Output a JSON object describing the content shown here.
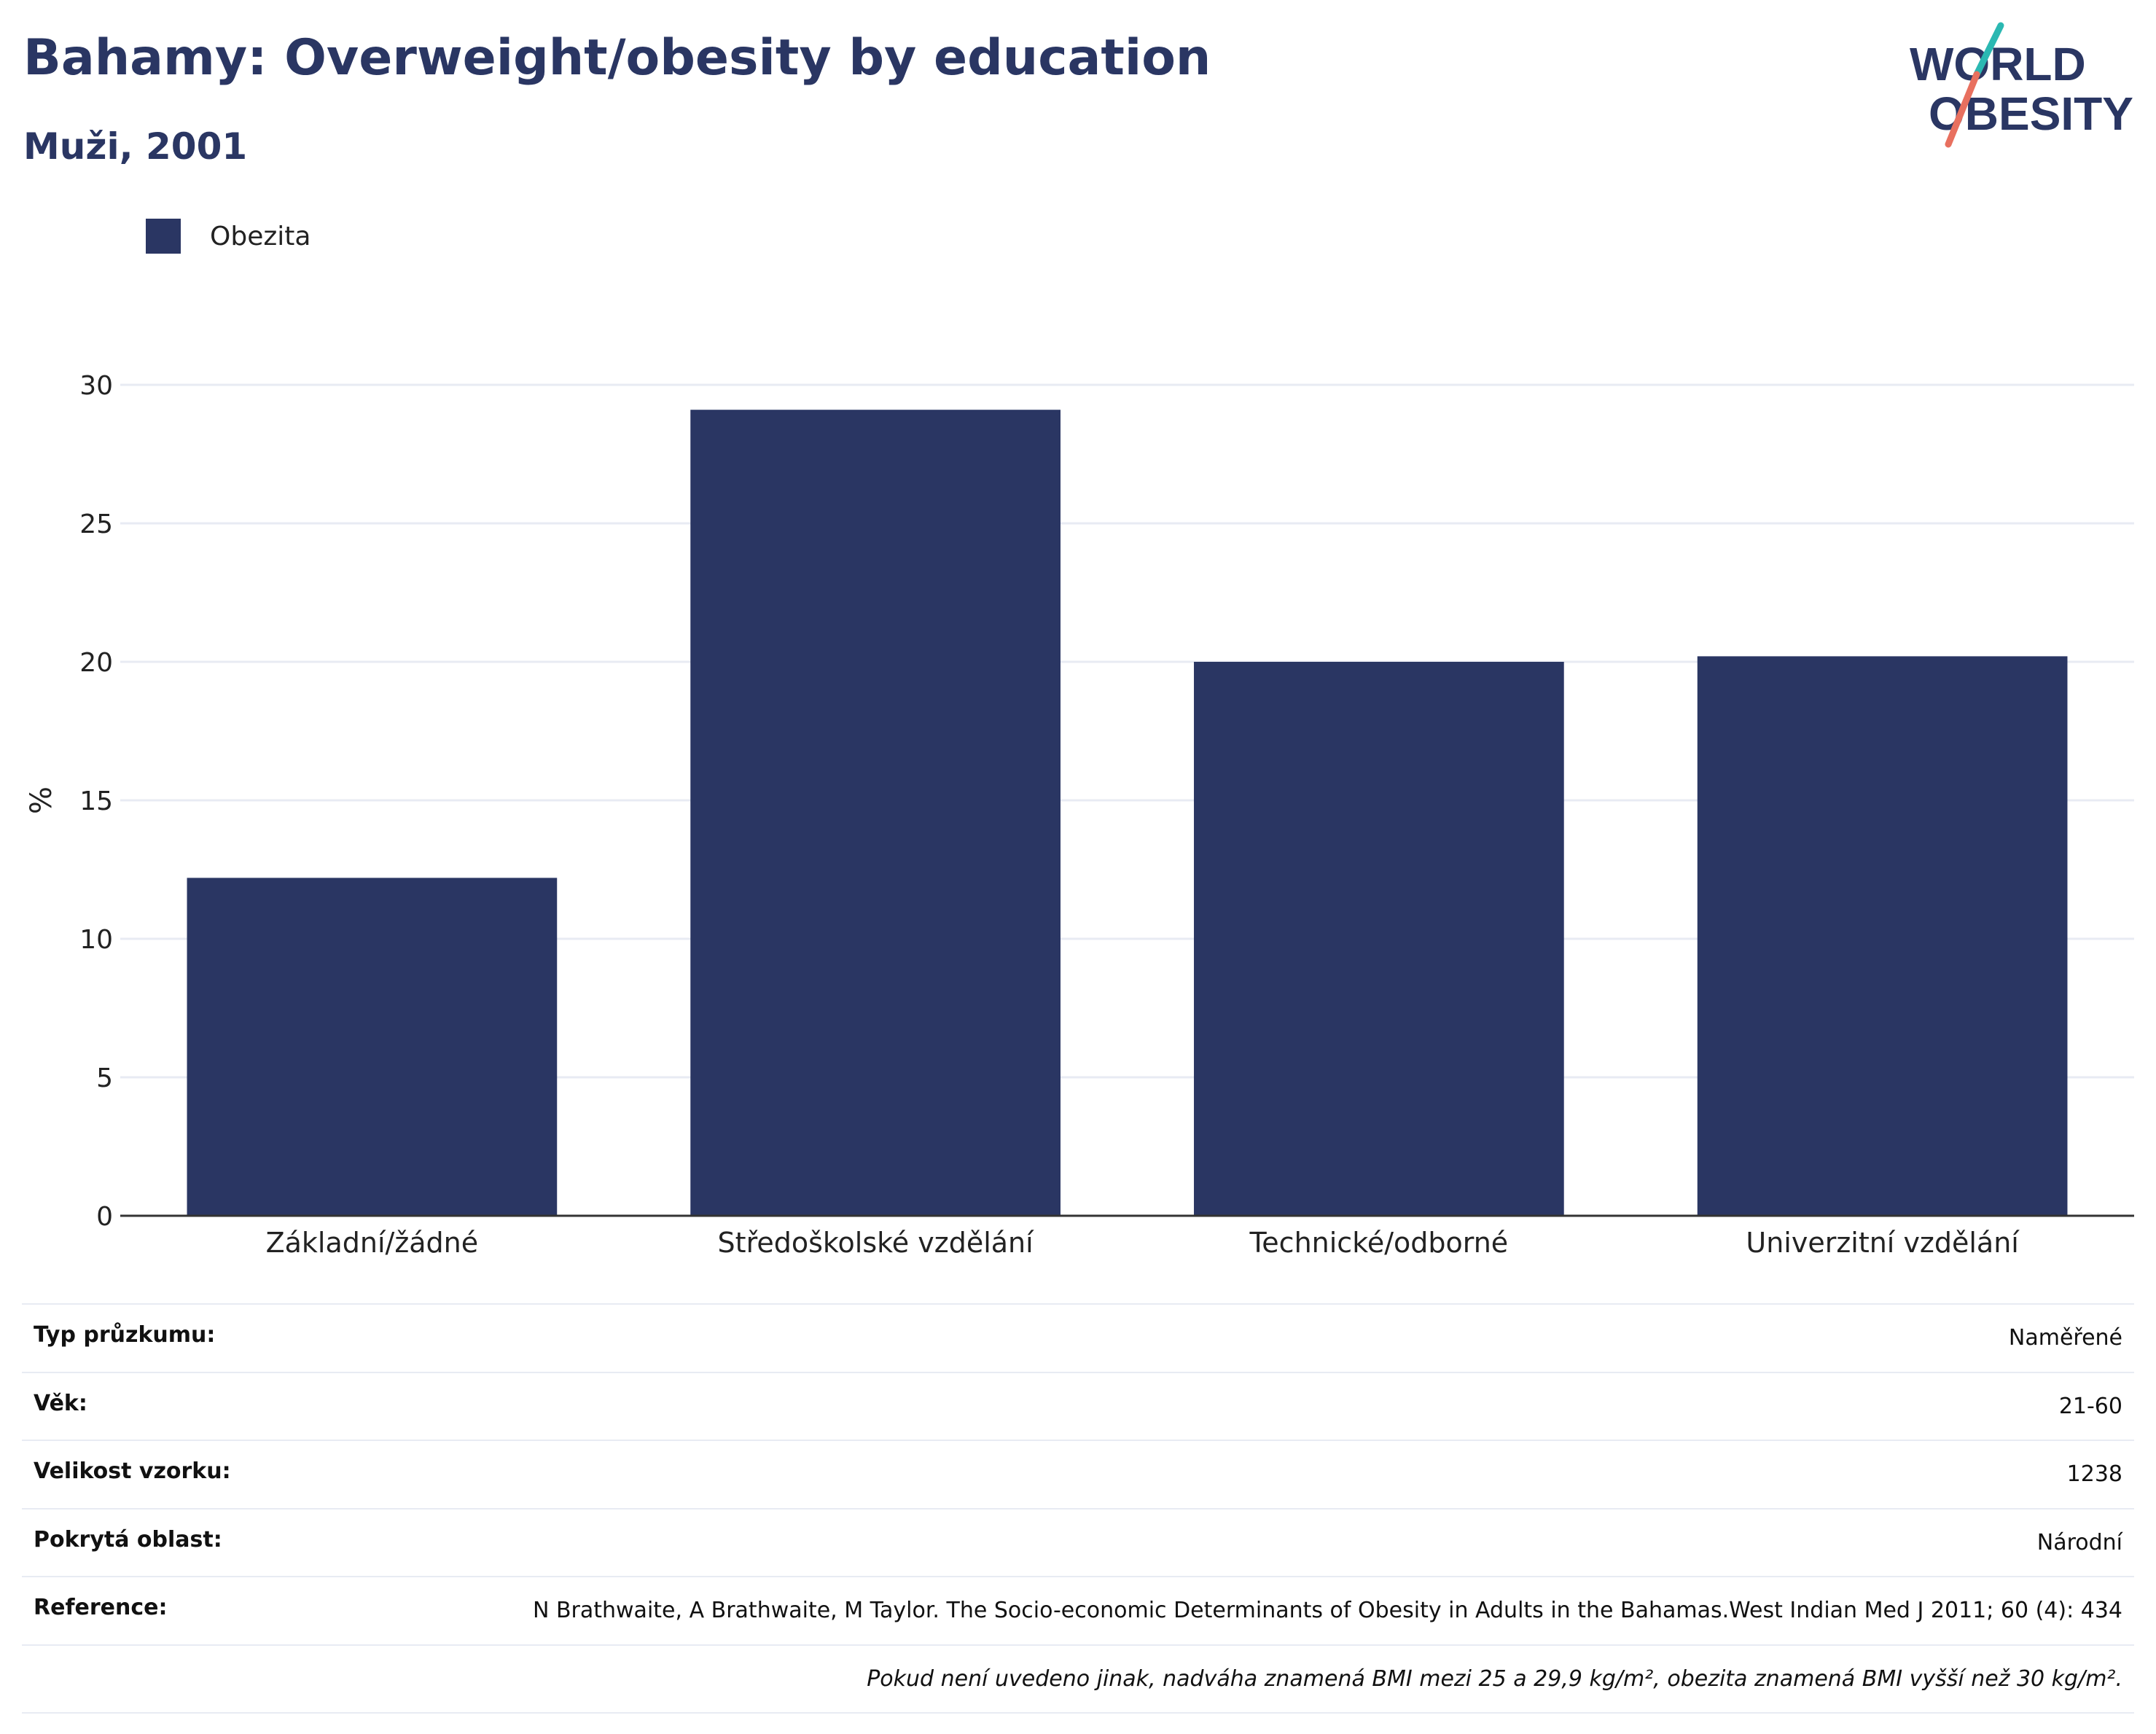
{
  "header": {
    "title": "Bahamy: Overweight/obesity by education",
    "subtitle": "Muži, 2001",
    "logo_text": [
      "WORLD",
      "OBESITY"
    ]
  },
  "legend": {
    "label": "Obezita"
  },
  "colors": {
    "bar": "#2a3663",
    "title": "#2a3663",
    "logo_teal": "#2bb8b2",
    "logo_coral": "#e8705f",
    "grid": "#e8ebf3",
    "axis": "#333333"
  },
  "chart_data": {
    "type": "bar",
    "categories": [
      "Základní/žádné",
      "Středoškolské vzdělání",
      "Technické/odborné",
      "Univerzitní vzdělání"
    ],
    "series": [
      {
        "name": "Obezita",
        "values": [
          12.2,
          29.1,
          20.0,
          20.2
        ]
      }
    ],
    "ylabel": "%",
    "ylim": [
      0,
      30
    ],
    "yticks": [
      0,
      5,
      10,
      15,
      20,
      25,
      30
    ],
    "grid": true,
    "legend_position": "top-left"
  },
  "meta": [
    {
      "key": "Typ průzkumu:",
      "value": "Naměřené"
    },
    {
      "key": "Věk:",
      "value": "21-60"
    },
    {
      "key": "Velikost vzorku:",
      "value": "1238"
    },
    {
      "key": "Pokrytá oblast:",
      "value": "Národní"
    },
    {
      "key": "Reference:",
      "value": "N Brathwaite, A Brathwaite, M Taylor. The Socio-economic Determinants of Obesity in Adults in the Bahamas.West Indian Med J 2011; 60 (4): 434"
    }
  ],
  "footnote": "Pokud není uvedeno jinak, nadváha znamená BMI mezi 25 a 29,9 kg/m², obezita znamená BMI vyšší než 30 kg/m²."
}
